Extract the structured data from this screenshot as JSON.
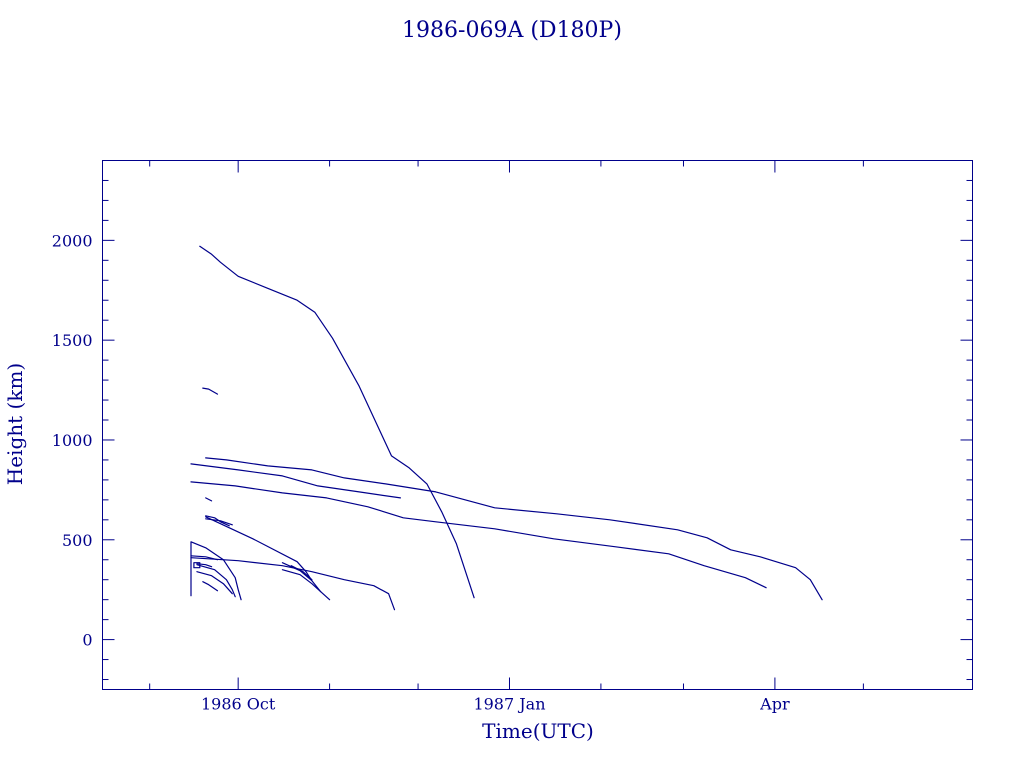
{
  "chart_data": {
    "type": "line",
    "title": "1986-069A (D180P)",
    "xlabel": "Time(UTC)",
    "ylabel": "Height (km)",
    "x_unit": "date",
    "xlim": [
      "1986-08-16",
      "1987-06-07"
    ],
    "ylim": [
      -250,
      2400
    ],
    "x_ticks": [
      {
        "date": "1986-10-01",
        "label": "1986 Oct"
      },
      {
        "date": "1987-01-01",
        "label": "1987 Jan"
      },
      {
        "date": "1987-04-01",
        "label": "Apr"
      }
    ],
    "x_minor_ticks": [
      "1986-09-01",
      "1986-11-01",
      "1986-12-01",
      "1987-02-01",
      "1987-03-01",
      "1987-05-01"
    ],
    "y_ticks": [
      0,
      500,
      1000,
      1500,
      2000
    ],
    "y_minor_step": 100,
    "grid": false,
    "legend": "none",
    "color": "#00008b",
    "series": [
      {
        "points": [
          [
            "1986-09-18",
            1970
          ],
          [
            "1986-09-22",
            1930
          ],
          [
            "1986-09-25",
            1890
          ],
          [
            "1986-10-01",
            1820
          ],
          [
            "1986-10-11",
            1760
          ],
          [
            "1986-10-21",
            1700
          ],
          [
            "1986-10-27",
            1640
          ],
          [
            "1986-11-02",
            1510
          ],
          [
            "1986-11-11",
            1270
          ],
          [
            "1986-11-22",
            920
          ],
          [
            "1986-11-28",
            860
          ],
          [
            "1986-12-04",
            780
          ],
          [
            "1986-12-09",
            640
          ],
          [
            "1986-12-14",
            480
          ],
          [
            "1986-12-18",
            300
          ],
          [
            "1986-12-20",
            210
          ]
        ]
      },
      {
        "points": [
          [
            "1986-09-19",
            1260
          ],
          [
            "1986-09-21",
            1255
          ],
          [
            "1986-09-24",
            1230
          ]
        ]
      },
      {
        "points": [
          [
            "1986-09-20",
            910
          ],
          [
            "1986-09-27",
            900
          ],
          [
            "1986-10-11",
            870
          ],
          [
            "1986-10-26",
            850
          ],
          [
            "1986-11-06",
            810
          ],
          [
            "1986-11-20",
            780
          ],
          [
            "1986-12-07",
            740
          ],
          [
            "1986-12-27",
            660
          ],
          [
            "1987-01-17",
            630
          ],
          [
            "1987-02-04",
            600
          ],
          [
            "1987-02-27",
            550
          ],
          [
            "1987-03-09",
            510
          ],
          [
            "1987-03-17",
            450
          ],
          [
            "1987-03-27",
            415
          ],
          [
            "1987-04-08",
            360
          ],
          [
            "1987-04-13",
            300
          ],
          [
            "1987-04-17",
            200
          ]
        ]
      },
      {
        "points": [
          [
            "1986-09-15",
            880
          ],
          [
            "1986-10-01",
            850
          ],
          [
            "1986-10-16",
            820
          ],
          [
            "1986-10-28",
            770
          ],
          [
            "1986-11-11",
            740
          ],
          [
            "1986-11-25",
            710
          ]
        ]
      },
      {
        "points": [
          [
            "1986-09-15",
            790
          ],
          [
            "1986-09-30",
            770
          ],
          [
            "1986-10-16",
            735
          ],
          [
            "1986-10-31",
            710
          ],
          [
            "1986-11-14",
            665
          ],
          [
            "1986-11-26",
            610
          ],
          [
            "1986-12-07",
            590
          ],
          [
            "1986-12-27",
            555
          ],
          [
            "1987-01-16",
            505
          ],
          [
            "1987-02-06",
            465
          ],
          [
            "1987-02-24",
            430
          ],
          [
            "1987-03-08",
            370
          ],
          [
            "1987-03-22",
            310
          ],
          [
            "1987-03-29",
            260
          ]
        ]
      },
      {
        "points": [
          [
            "1986-09-20",
            710
          ],
          [
            "1986-09-22",
            695
          ]
        ]
      },
      {
        "points": [
          [
            "1986-09-20",
            620
          ],
          [
            "1986-09-23",
            610
          ],
          [
            "1986-09-25",
            590
          ],
          [
            "1986-09-28",
            570
          ]
        ]
      },
      {
        "points": [
          [
            "1986-09-20",
            605
          ],
          [
            "1986-09-25",
            595
          ],
          [
            "1986-09-29",
            575
          ]
        ]
      },
      {
        "points": [
          [
            "1986-09-20",
            615
          ],
          [
            "1986-10-06",
            505
          ],
          [
            "1986-10-21",
            390
          ],
          [
            "1986-10-24",
            340
          ],
          [
            "1986-10-26",
            295
          ]
        ]
      },
      {
        "points": [
          [
            "1986-09-15",
            410
          ],
          [
            "1986-10-01",
            395
          ],
          [
            "1986-10-16",
            370
          ],
          [
            "1986-10-26",
            340
          ],
          [
            "1986-11-06",
            300
          ],
          [
            "1986-11-16",
            270
          ],
          [
            "1986-11-21",
            230
          ],
          [
            "1986-11-23",
            150
          ]
        ]
      },
      {
        "points": [
          [
            "1986-10-16",
            385
          ],
          [
            "1986-10-22",
            345
          ],
          [
            "1986-10-26",
            295
          ],
          [
            "1986-10-29",
            240
          ],
          [
            "1986-11-01",
            200
          ]
        ]
      },
      {
        "points": [
          [
            "1986-10-16",
            350
          ],
          [
            "1986-10-22",
            325
          ],
          [
            "1986-10-26",
            280
          ],
          [
            "1986-10-29",
            240
          ]
        ]
      },
      {
        "points": [
          [
            "1986-10-19",
            370
          ],
          [
            "1986-10-23",
            340
          ],
          [
            "1986-10-26",
            300
          ]
        ]
      },
      {
        "points": [
          [
            "1986-09-15",
            220
          ],
          [
            "1986-09-15",
            490
          ],
          [
            "1986-09-20",
            460
          ],
          [
            "1986-09-26",
            400
          ],
          [
            "1986-09-30",
            310
          ],
          [
            "1986-10-01",
            250
          ],
          [
            "1986-10-02",
            200
          ]
        ]
      },
      {
        "points": [
          [
            "1986-09-15",
            420
          ],
          [
            "1986-09-20",
            415
          ],
          [
            "1986-09-24",
            400
          ]
        ]
      },
      {
        "points": [
          [
            "1986-09-17",
            375
          ],
          [
            "1986-09-23",
            350
          ],
          [
            "1986-09-27",
            300
          ],
          [
            "1986-09-29",
            250
          ],
          [
            "1986-09-30",
            215
          ]
        ]
      },
      {
        "points": [
          [
            "1986-09-16",
            385
          ],
          [
            "1986-09-18",
            385
          ],
          [
            "1986-09-18",
            360
          ],
          [
            "1986-09-16",
            360
          ],
          [
            "1986-09-16",
            385
          ]
        ]
      },
      {
        "points": [
          [
            "1986-09-17",
            380
          ],
          [
            "1986-09-20",
            375
          ],
          [
            "1986-09-22",
            365
          ]
        ]
      },
      {
        "points": [
          [
            "1986-09-17",
            340
          ],
          [
            "1986-09-22",
            320
          ],
          [
            "1986-09-26",
            280
          ],
          [
            "1986-09-29",
            230
          ]
        ]
      },
      {
        "points": [
          [
            "1986-09-19",
            290
          ],
          [
            "1986-09-21",
            275
          ],
          [
            "1986-09-23",
            255
          ],
          [
            "1986-09-24",
            245
          ]
        ]
      }
    ]
  }
}
